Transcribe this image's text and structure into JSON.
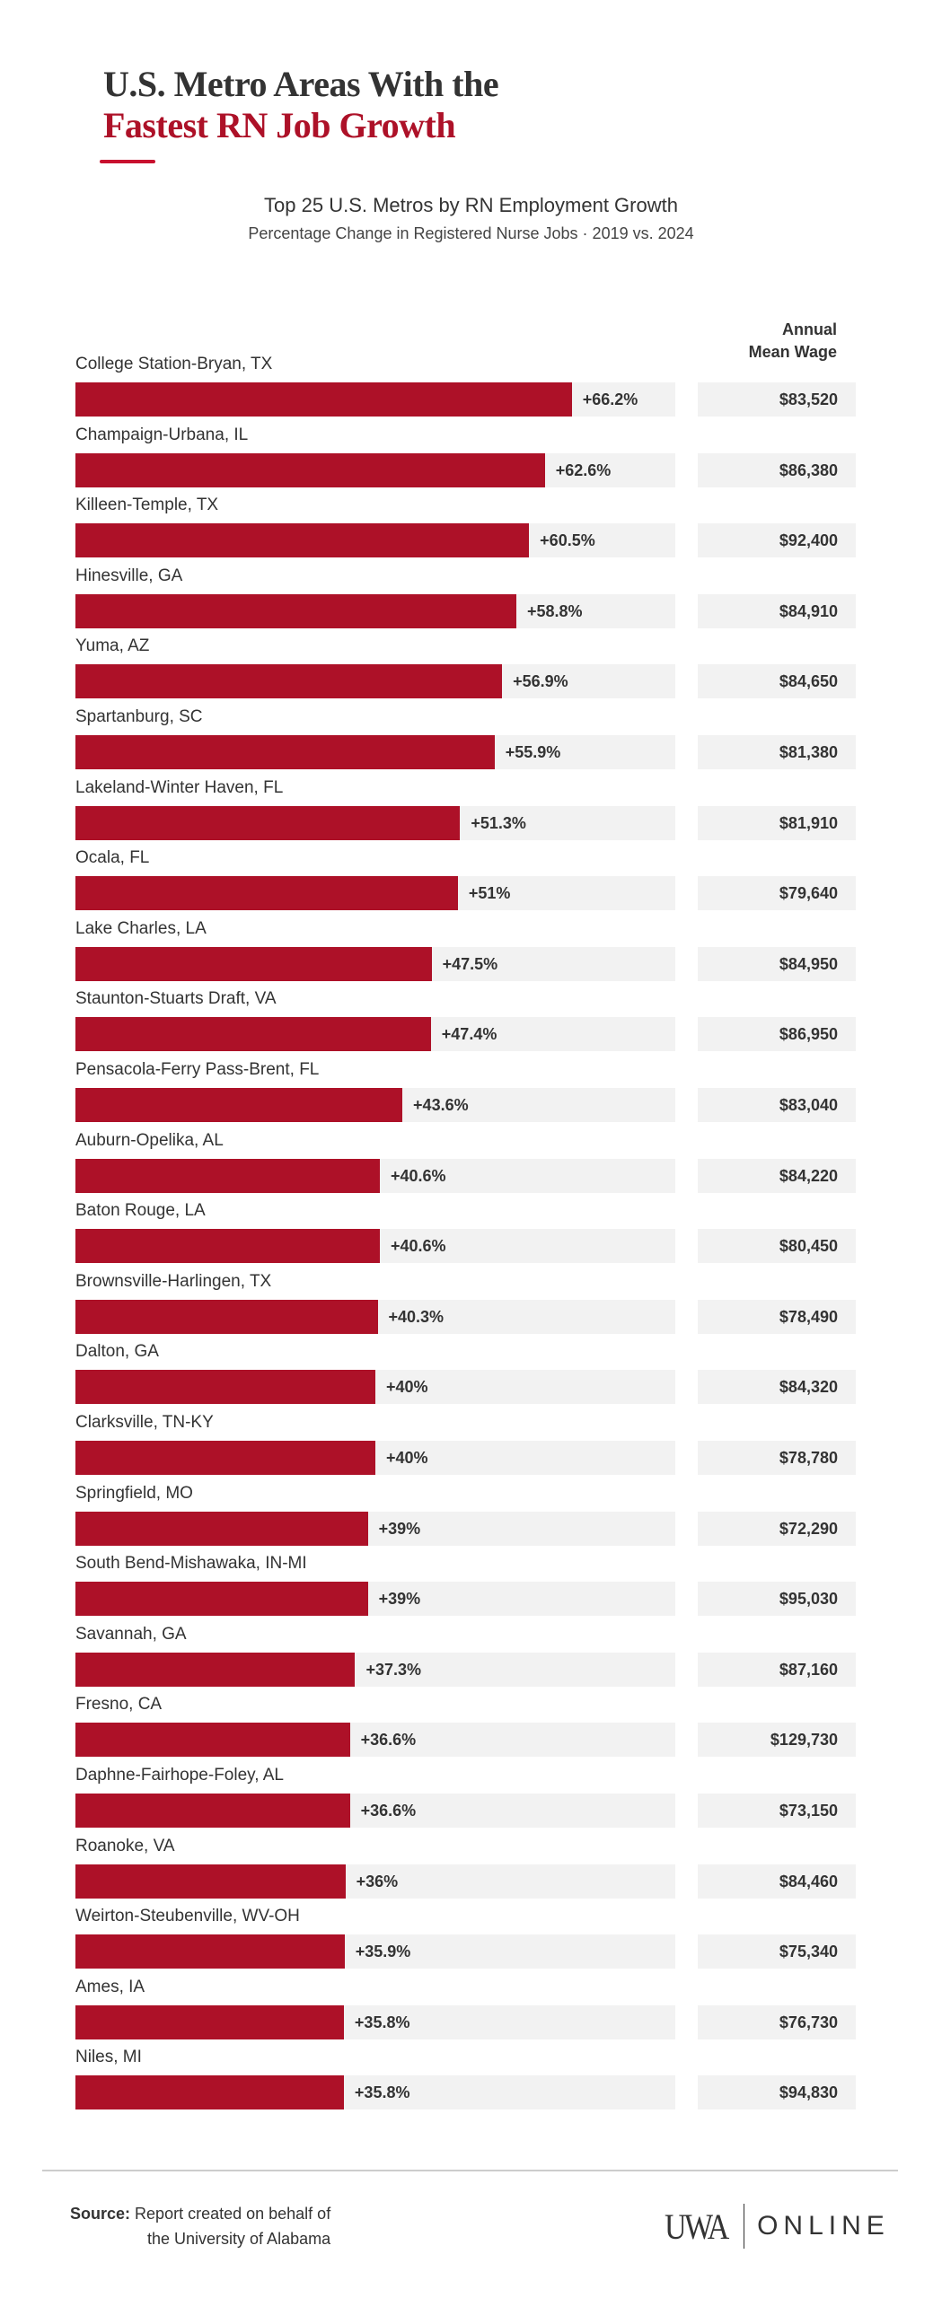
{
  "header": {
    "title_line1": "U.S. Metro Areas With the",
    "title_line2": "Fastest RN Job Growth"
  },
  "chart_data": {
    "type": "bar",
    "orientation": "horizontal",
    "title": "Top 25 U.S. Metros by RN Employment Growth",
    "subtitle": "Percentage Change in Registered Nurse Jobs · 2019 vs. 2024",
    "wage_header": [
      "Annual",
      "Mean Wage"
    ],
    "xlim": [
      0,
      80
    ],
    "grid": false,
    "bar_color": "#AD1128",
    "track_color": "#F2F2F2",
    "categories": [
      "College Station-Bryan, TX",
      "Champaign-Urbana, IL",
      "Killeen-Temple, TX",
      "Hinesville, GA",
      "Yuma, AZ",
      "Spartanburg, SC",
      "Lakeland-Winter Haven, FL",
      "Ocala, FL",
      "Lake Charles, LA",
      "Staunton-Stuarts Draft, VA",
      "Pensacola-Ferry Pass-Brent, FL",
      "Auburn-Opelika, AL",
      "Baton Rouge, LA",
      "Brownsville-Harlingen, TX",
      "Dalton, GA",
      "Clarksville, TN-KY",
      "Springfield, MO",
      "South Bend-Mishawaka, IN-MI",
      "Savannah, GA",
      "Fresno, CA",
      "Daphne-Fairhope-Foley, AL",
      "Roanoke, VA",
      "Weirton-Steubenville, WV-OH",
      "Ames, IA",
      "Niles, MI"
    ],
    "values": [
      66.2,
      62.6,
      60.5,
      58.8,
      56.9,
      55.9,
      51.3,
      51,
      47.5,
      47.4,
      43.6,
      40.6,
      40.6,
      40.3,
      40,
      40,
      39,
      39,
      37.3,
      36.6,
      36.6,
      36,
      35.9,
      35.8,
      35.8
    ],
    "value_labels": [
      "+66.2%",
      "+62.6%",
      "+60.5%",
      "+58.8%",
      "+56.9%",
      "+55.9%",
      "+51.3%",
      "+51%",
      "+47.5%",
      "+47.4%",
      "+43.6%",
      "+40.6%",
      "+40.6%",
      "+40.3%",
      "+40%",
      "+40%",
      "+39%",
      "+39%",
      "+37.3%",
      "+36.6%",
      "+36.6%",
      "+36%",
      "+35.9%",
      "+35.8%",
      "+35.8%"
    ],
    "wages": [
      "$83,520",
      "$86,380",
      "$92,400",
      "$84,910",
      "$84,650",
      "$81,380",
      "$81,910",
      "$79,640",
      "$84,950",
      "$86,950",
      "$83,040",
      "$84,220",
      "$80,450",
      "$78,490",
      "$84,320",
      "$78,780",
      "$72,290",
      "$95,030",
      "$87,160",
      "$129,730",
      "$73,150",
      "$84,460",
      "$75,340",
      "$76,730",
      "$94,830"
    ]
  },
  "footer": {
    "source_label": "Source:",
    "source_line1": "Report created on behalf of",
    "source_line2": "the University of Alabama",
    "logo_mark": "UWA",
    "logo_text": "ONLINE"
  }
}
